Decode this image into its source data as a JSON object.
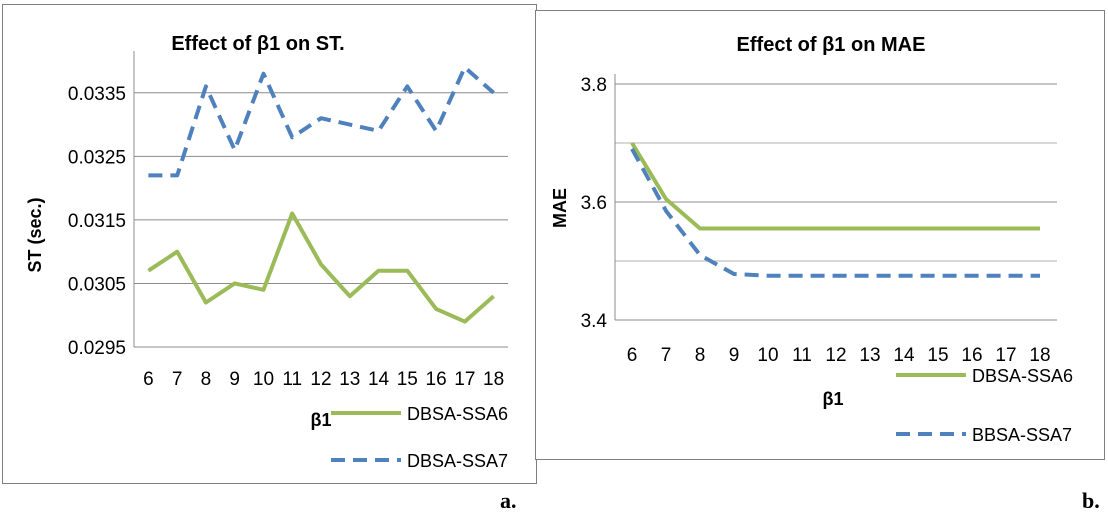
{
  "chart_data": [
    {
      "type": "line",
      "title": "Effect of β1 on ST.",
      "xlabel": "β1",
      "ylabel": "ST (sec.)",
      "categories": [
        "6",
        "7",
        "8",
        "9",
        "10",
        "11",
        "12",
        "13",
        "14",
        "15",
        "16",
        "17",
        "18"
      ],
      "yticks": [
        "0.0295",
        "0.0305",
        "0.0315",
        "0.0325",
        "0.0335"
      ],
      "ylim": [
        0.0295,
        0.034
      ],
      "grid": true,
      "legend": "bottom-right",
      "series": [
        {
          "name": "DBSA-SSA6",
          "color": "#9bbb59",
          "dash": "solid",
          "values": [
            0.0307,
            0.031,
            0.0302,
            0.0305,
            0.0304,
            0.0316,
            0.0308,
            0.0303,
            0.0307,
            0.0307,
            0.0301,
            0.0299,
            0.0303
          ]
        },
        {
          "name": "DBSA-SSA7",
          "color": "#4f81bd",
          "dash": "dashed",
          "values": [
            0.0322,
            0.0322,
            0.0336,
            0.0326,
            0.0338,
            0.0328,
            0.0331,
            0.033,
            0.0329,
            0.0336,
            0.0329,
            0.0339,
            0.0335
          ]
        }
      ],
      "sublabel": "a."
    },
    {
      "type": "line",
      "title": "Effect of β1 on MAE",
      "xlabel": "β1",
      "ylabel": "MAE",
      "categories": [
        "6",
        "7",
        "8",
        "9",
        "10",
        "11",
        "12",
        "13",
        "14",
        "15",
        "16",
        "17",
        "18"
      ],
      "yticks": [
        "3.4",
        "3.6",
        "3.8"
      ],
      "ylim": [
        3.4,
        3.8
      ],
      "grid": true,
      "legend": "bottom-right",
      "series": [
        {
          "name": "DBSA-SSA6",
          "color": "#9bbb59",
          "dash": "solid",
          "values": [
            3.7,
            3.605,
            3.555,
            3.555,
            3.555,
            3.555,
            3.555,
            3.555,
            3.555,
            3.555,
            3.555,
            3.555,
            3.555
          ]
        },
        {
          "name": "BBSA-SSA7",
          "color": "#4f81bd",
          "dash": "dashed",
          "values": [
            3.69,
            3.585,
            3.51,
            3.478,
            3.475,
            3.475,
            3.475,
            3.475,
            3.475,
            3.475,
            3.475,
            3.475,
            3.475
          ]
        }
      ],
      "sublabel": "b."
    }
  ]
}
